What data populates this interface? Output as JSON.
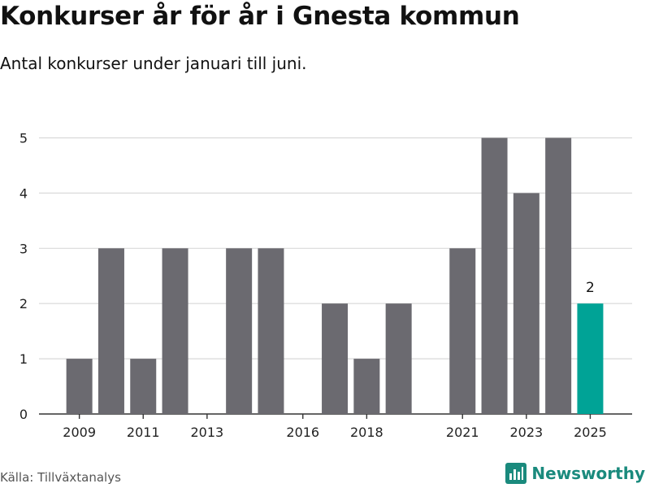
{
  "title": "Konkurser år för år i Gnesta kommun",
  "subtitle": "Antal konkurser under januari till juni.",
  "source": "Källa: Tillväxtanalys",
  "brand": {
    "name": "Newsworthy",
    "icon": "newsworthy-logo-icon"
  },
  "colors": {
    "bar": "#6b6a70",
    "highlight": "#00a396",
    "grid": "#d9d9d9",
    "axis": "#333333"
  },
  "chart_data": {
    "type": "bar",
    "x": [
      2009,
      2010,
      2011,
      2012,
      2013,
      2014,
      2015,
      2016,
      2017,
      2018,
      2019,
      2020,
      2021,
      2022,
      2023,
      2024,
      2025
    ],
    "values": [
      1,
      3,
      1,
      3,
      0,
      3,
      3,
      0,
      2,
      1,
      2,
      0,
      3,
      5,
      4,
      5,
      2
    ],
    "x_ticks": [
      "2009",
      "2011",
      "2013",
      "2016",
      "2018",
      "2021",
      "2023",
      "2025"
    ],
    "y_ticks": [
      0,
      1,
      2,
      3,
      4,
      5
    ],
    "ylim": [
      0,
      5.5
    ],
    "highlight": {
      "x": 2025,
      "label": "2"
    },
    "grid": true
  }
}
